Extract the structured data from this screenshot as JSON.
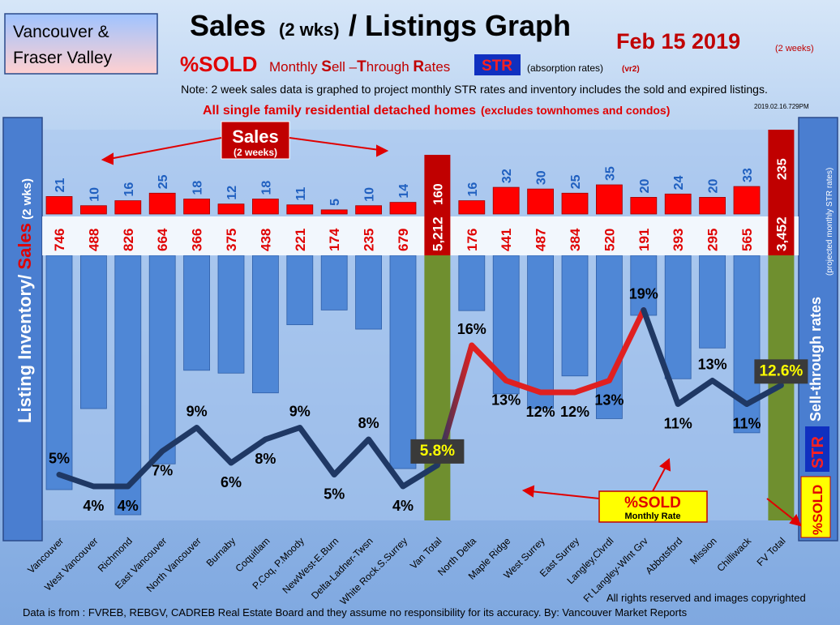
{
  "header": {
    "region_line1": "Vancouver &",
    "region_line2": "Fraser Valley",
    "title_main": "Sales",
    "title_paren": "(2 wks)",
    "title_rest": "/ Listings Graph",
    "date": "Feb  15  2019",
    "date_note": "(2 weeks)",
    "subtitle_sold": "%SOLD",
    "subtitle_m": "Monthly ",
    "subtitle_S": "S",
    "subtitle_ell": "ell –",
    "subtitle_T": "T",
    "subtitle_hrough": "hrough ",
    "subtitle_R": "R",
    "subtitle_ates": "ates",
    "str_badge": "STR",
    "subtitle_abs": "(absorption rates)",
    "subtitle_ver": "(vr2)",
    "note": "Note: 2 week sales data is graphed to project monthly STR rates and inventory includes the sold and expired listings.",
    "detached_main": "All single family residential detached homes",
    "detached_paren": "(excludes townhomes and condos)",
    "stamp": "2019.02.16.729PM"
  },
  "left_axis": {
    "text1": "Listing Inventory",
    "text2": "/ ",
    "text3": "Sales",
    "text4": " (2 wks)"
  },
  "right_axis": {
    "text1": "Sell-through rates",
    "text2": "(projected monthly STR rates)",
    "str_badge": "STR",
    "sold_label": "%SOLD"
  },
  "annotations": {
    "sales_box_main": "Sales",
    "sales_box_sub": "(2 weeks)",
    "sold_box_main": "%SOLD",
    "sold_box_sub": "Monthly Rate"
  },
  "footer": {
    "rights": "All rights reserved and  images copyrighted",
    "source": "Data is from : FVREB, REBGV, CADREB Real Estate Board and they assume no responsibility for its accuracy. By: Vancouver Market Reports"
  },
  "colors": {
    "sales_bar": "#ff0000",
    "total_sales_bar": "#c00000",
    "listing_bar": "#4f87d6",
    "total_listing_bar": "#6f8f2f",
    "line_dark": "#1f3864",
    "line_red": "#e02020",
    "axis_bar": "#4a7ed0"
  },
  "chart_data": {
    "type": "bar",
    "categories": [
      "Vancouver",
      "West Vancouver",
      "Richmond",
      "East Vancouver",
      "North Vancouver",
      "Burnaby",
      "Coquitlam",
      "P.Coq, P.Moody",
      "NewWest-E.Burn",
      "Delta-Ladner-Twsn",
      "White Rock.S.Surrey",
      "Van Total",
      "North Delta",
      "Maple Ridge",
      "West Surrey",
      "East Surrey",
      "Langley,Clvrdl",
      "Ft Langley-Wlnt Grv",
      "Abbotsford",
      "Mission",
      "Chilliwack",
      "FV Total"
    ],
    "series": [
      {
        "name": "Sales",
        "values": [
          21,
          10,
          16,
          25,
          18,
          12,
          18,
          11,
          5,
          10,
          14,
          160,
          16,
          32,
          30,
          25,
          35,
          20,
          24,
          20,
          33,
          235
        ]
      },
      {
        "name": "Listing Inventory",
        "values": [
          746,
          488,
          826,
          664,
          366,
          375,
          438,
          221,
          174,
          235,
          679,
          5212,
          176,
          441,
          487,
          384,
          520,
          191,
          393,
          295,
          565,
          3452
        ]
      },
      {
        "name": "%SOLD",
        "values": [
          5,
          4,
          4,
          7,
          9,
          6,
          8,
          9,
          5,
          8,
          4,
          5.8,
          16,
          13,
          12,
          12,
          13,
          19,
          11,
          13,
          11,
          12.6
        ]
      }
    ],
    "sold_labels": [
      "5%",
      "4%",
      "4%",
      "7%",
      "9%",
      "6%",
      "8%",
      "9%",
      "5%",
      "8%",
      "4%",
      "5.8%",
      "16%",
      "13%",
      "12%",
      "12%",
      "13%",
      "19%",
      "11%",
      "13%",
      "11%",
      "12.6%"
    ],
    "listing_labels": [
      "746",
      "488",
      "826",
      "664",
      "366",
      "375",
      "438",
      "221",
      "174",
      "235",
      "679",
      "5,212",
      "176",
      "441",
      "487",
      "384",
      "520",
      "191",
      "393",
      "295",
      "565",
      "3,452"
    ],
    "sales_labels": [
      "21",
      "10",
      "16",
      "25",
      "18",
      "12",
      "18",
      "11",
      "5",
      "10",
      "14",
      "160",
      "16",
      "32",
      "30",
      "25",
      "35",
      "20",
      "24",
      "20",
      "33",
      "235"
    ],
    "title": "Sales (2 wks)/ Listings Graph",
    "ylabel": "Listing Inventory / Sales (2 wks)",
    "y2label": "Sell-through rates"
  }
}
